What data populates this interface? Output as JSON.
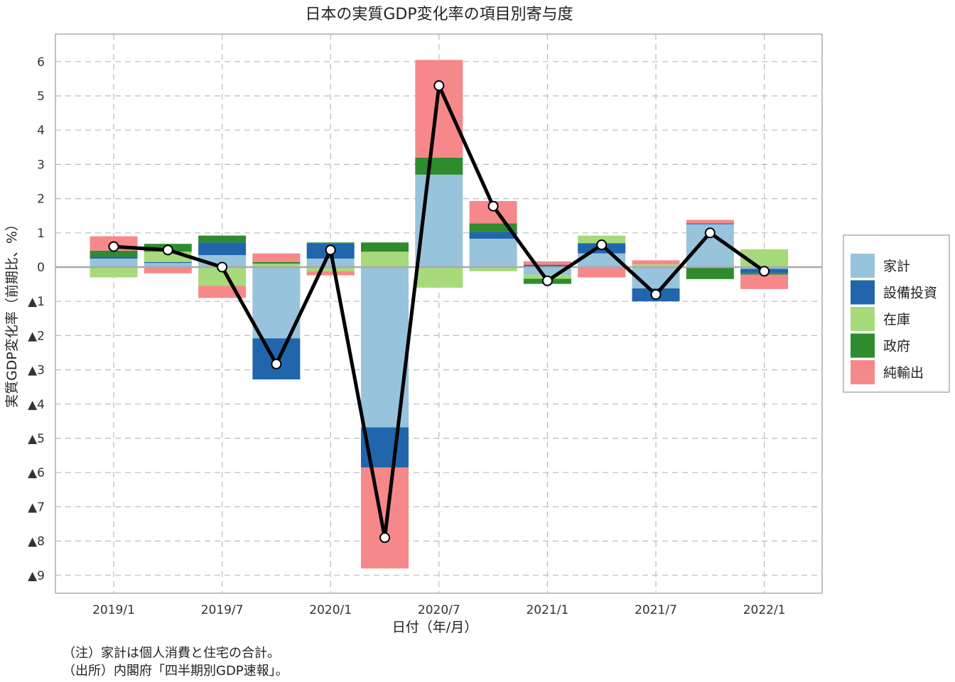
{
  "chart_data": {
    "type": "bar",
    "stacked": true,
    "title": "日本の実質GDP変化率の項目別寄与度",
    "xlabel": "日付（年/月）",
    "ylabel": "実質GDP変化率（前期比、%）",
    "ylim": [
      -9.5,
      6.6
    ],
    "yticks": [
      6,
      5,
      4,
      3,
      2,
      1,
      0,
      -1,
      -2,
      -3,
      -4,
      -5,
      -6,
      -7,
      -8,
      -9
    ],
    "ytick_labels": [
      "6",
      "5",
      "4",
      "3",
      "2",
      "1",
      "0",
      "▲1",
      "▲2",
      "▲3",
      "▲4",
      "▲5",
      "▲6",
      "▲7",
      "▲8",
      "▲9"
    ],
    "xtick_labels": [
      "2019/1",
      "2019/7",
      "2020/1",
      "2020/7",
      "2021/1",
      "2021/7",
      "2022/1"
    ],
    "xtick_every": 2,
    "grid": true,
    "legend_position": "right",
    "categories": [
      "2019/1",
      "2019/4",
      "2019/7",
      "2019/10",
      "2020/1",
      "2020/4",
      "2020/7",
      "2020/10",
      "2021/1",
      "2021/4",
      "2021/7",
      "2021/10",
      "2022/1"
    ],
    "series": [
      {
        "name": "家計",
        "color": "#98C3DC",
        "values": [
          0.25,
          0.12,
          0.35,
          -2.08,
          0.25,
          -4.68,
          2.7,
          0.83,
          -0.22,
          0.4,
          -0.62,
          1.25,
          -0.05
        ]
      },
      {
        "name": "設備投資",
        "color": "#2166AC",
        "values": [
          0.05,
          0.03,
          0.37,
          -1.2,
          0.45,
          -1.17,
          0.0,
          0.2,
          0.07,
          0.3,
          -0.38,
          0.03,
          -0.12
        ]
      },
      {
        "name": "在庫",
        "color": "#A6DA7A",
        "values": [
          -0.3,
          0.3,
          -0.55,
          0.1,
          -0.12,
          0.45,
          -0.6,
          -0.12,
          -0.12,
          0.22,
          0.08,
          0.0,
          0.52
        ]
      },
      {
        "name": "政府",
        "color": "#2E8B2E",
        "values": [
          0.18,
          0.23,
          0.2,
          0.05,
          0.02,
          0.27,
          0.5,
          0.25,
          -0.15,
          0.0,
          0.0,
          -0.35,
          -0.05
        ]
      },
      {
        "name": "純輸出",
        "color": "#F6888A",
        "values": [
          0.42,
          -0.18,
          -0.35,
          0.25,
          -0.12,
          -2.95,
          2.85,
          0.65,
          0.1,
          -0.3,
          0.12,
          0.1,
          -0.42
        ]
      }
    ],
    "line": {
      "name": "実質GDP変化率",
      "values": [
        0.6,
        0.5,
        0.0,
        -2.83,
        0.5,
        -7.9,
        5.3,
        1.78,
        -0.4,
        0.65,
        -0.8,
        1.0,
        -0.12
      ]
    }
  },
  "notes": [
    "（注）家計は個人消費と住宅の合計。",
    "（出所）内閣府「四半期別GDP速報」。"
  ]
}
